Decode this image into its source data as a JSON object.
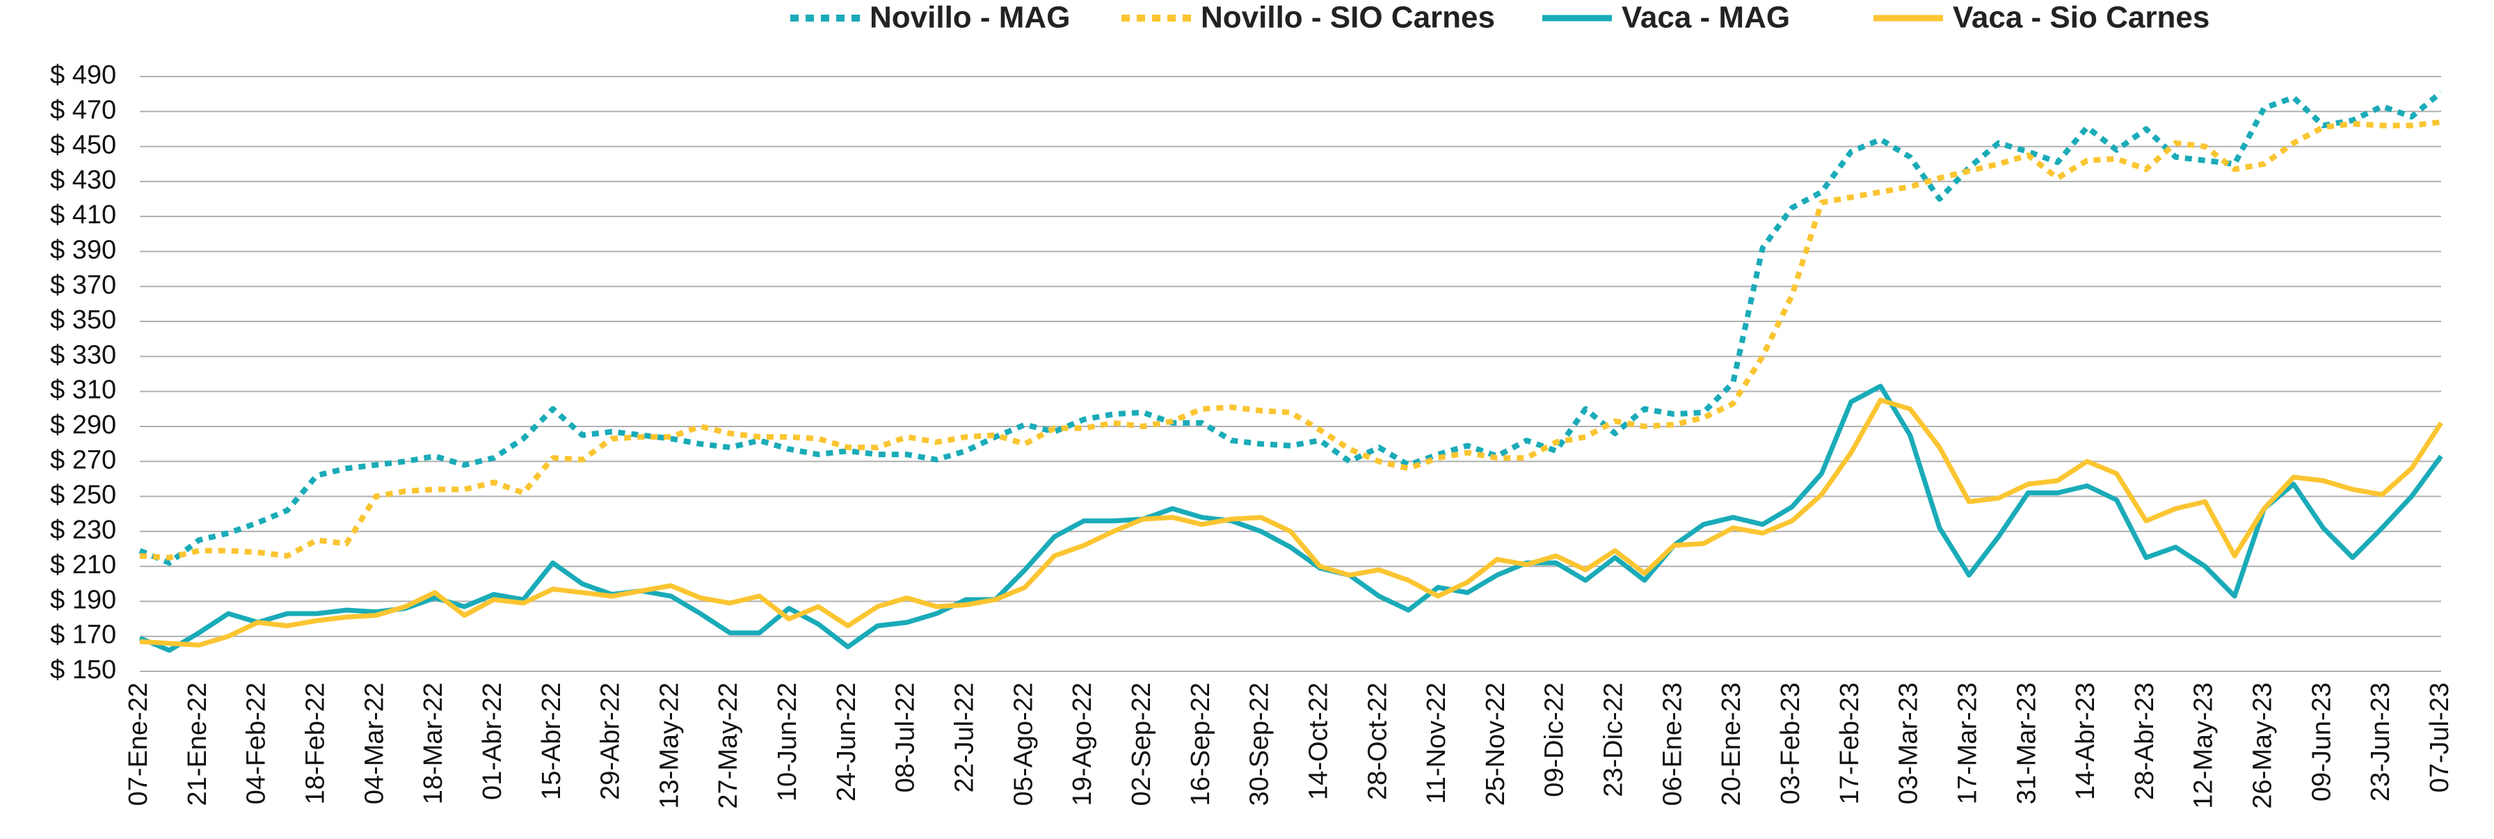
{
  "chart_data": {
    "type": "line",
    "categories": [
      "07-Ene-22",
      null,
      "21-Ene-22",
      null,
      "04-Feb-22",
      null,
      "18-Feb-22",
      null,
      "04-Mar-22",
      null,
      "18-Mar-22",
      null,
      "01-Abr-22",
      null,
      "15-Abr-22",
      null,
      "29-Abr-22",
      null,
      "13-May-22",
      null,
      "27-May-22",
      null,
      "10-Jun-22",
      null,
      "24-Jun-22",
      null,
      "08-Jul-22",
      null,
      "22-Jul-22",
      null,
      "05-Ago-22",
      null,
      "19-Ago-22",
      null,
      "02-Sep-22",
      null,
      "16-Sep-22",
      null,
      "30-Sep-22",
      null,
      "14-Oct-22",
      null,
      "28-Oct-22",
      null,
      "11-Nov-22",
      null,
      "25-Nov-22",
      null,
      "09-Dic-22",
      null,
      "23-Dic-22",
      null,
      "06-Ene-23",
      null,
      "20-Ene-23",
      null,
      "03-Feb-23",
      null,
      "17-Feb-23",
      null,
      "03-Mar-23",
      null,
      "17-Mar-23",
      null,
      "31-Mar-23",
      null,
      "14-Abr-23",
      null,
      "28-Abr-23",
      null,
      "12-May-23",
      null,
      "26-May-23",
      null,
      "09-Jun-23",
      null,
      "23-Jun-23",
      null,
      "07-Jul-23"
    ],
    "series": [
      {
        "name": "Novillo - MAG",
        "color": "#1aabb8",
        "dashed": true,
        "values": [
          219,
          212,
          225,
          229,
          235,
          242,
          262,
          266,
          268,
          270,
          273,
          268,
          272,
          283,
          300,
          285,
          287,
          285,
          283,
          280,
          278,
          282,
          277,
          274,
          276,
          274,
          274,
          271,
          276,
          284,
          291,
          287,
          294,
          297,
          298,
          292,
          292,
          282,
          280,
          279,
          282,
          270,
          278,
          268,
          274,
          279,
          273,
          282,
          276,
          300,
          286,
          300,
          297,
          298,
          315,
          392,
          415,
          424,
          447,
          454,
          444,
          420,
          438,
          452,
          447,
          441,
          461,
          448,
          460,
          444,
          442,
          440,
          472,
          478,
          462,
          465,
          473,
          467,
          481
        ]
      },
      {
        "name": "Novillo - SIO Carnes",
        "color": "#fbc531",
        "dashed": true,
        "values": [
          216,
          215,
          219,
          219,
          218,
          216,
          225,
          223,
          250,
          253,
          254,
          254,
          258,
          252,
          272,
          271,
          283,
          284,
          284,
          290,
          286,
          284,
          284,
          283,
          278,
          278,
          284,
          281,
          284,
          285,
          280,
          289,
          289,
          292,
          290,
          293,
          300,
          301,
          299,
          298,
          288,
          277,
          270,
          266,
          272,
          275,
          272,
          272,
          281,
          284,
          293,
          290,
          291,
          295,
          303,
          330,
          365,
          418,
          421,
          424,
          427,
          432,
          436,
          440,
          445,
          432,
          442,
          443,
          437,
          452,
          450,
          437,
          440,
          452,
          461,
          463,
          462,
          462,
          464
        ]
      },
      {
        "name": "Vaca - MAG",
        "color": "#1aabb8",
        "dashed": false,
        "values": [
          169,
          162,
          172,
          183,
          178,
          183,
          183,
          185,
          184,
          186,
          192,
          187,
          194,
          191,
          212,
          200,
          194,
          196,
          193,
          183,
          172,
          172,
          186,
          177,
          164,
          176,
          178,
          183,
          191,
          191,
          208,
          227,
          236,
          236,
          237,
          243,
          238,
          236,
          230,
          221,
          209,
          205,
          193,
          185,
          198,
          195,
          205,
          212,
          212,
          202,
          215,
          202,
          222,
          234,
          238,
          234,
          244,
          263,
          304,
          313,
          285,
          232,
          205,
          227,
          252,
          252,
          256,
          248,
          215,
          221,
          210,
          193,
          243,
          257,
          232,
          215,
          232,
          250,
          273
        ]
      },
      {
        "name": "Vaca - Sio Carnes",
        "color": "#fbc531",
        "dashed": false,
        "values": [
          167,
          166,
          165,
          170,
          178,
          176,
          179,
          181,
          182,
          187,
          195,
          182,
          191,
          189,
          197,
          195,
          193,
          196,
          199,
          192,
          189,
          193,
          180,
          187,
          176,
          187,
          192,
          187,
          188,
          191,
          198,
          216,
          222,
          230,
          237,
          238,
          234,
          237,
          238,
          230,
          210,
          205,
          208,
          202,
          193,
          201,
          214,
          211,
          216,
          208,
          219,
          206,
          222,
          223,
          232,
          229,
          236,
          251,
          275,
          305,
          300,
          278,
          247,
          249,
          257,
          259,
          270,
          263,
          236,
          243,
          247,
          216,
          243,
          261,
          259,
          254,
          251,
          266,
          292
        ]
      }
    ],
    "ylim": [
      150,
      490
    ],
    "yticks": [
      {
        "value": 150,
        "label": "$ 150"
      },
      {
        "value": 170,
        "label": "$ 170"
      },
      {
        "value": 190,
        "label": "$ 190"
      },
      {
        "value": 210,
        "label": "$ 210"
      },
      {
        "value": 230,
        "label": "$ 230"
      },
      {
        "value": 250,
        "label": "$ 250"
      },
      {
        "value": 270,
        "label": "$ 270"
      },
      {
        "value": 290,
        "label": "$ 290"
      },
      {
        "value": 310,
        "label": "$ 310"
      },
      {
        "value": 330,
        "label": "$ 330"
      },
      {
        "value": 350,
        "label": "$ 350"
      },
      {
        "value": 370,
        "label": "$ 370"
      },
      {
        "value": 390,
        "label": "$ 390"
      },
      {
        "value": 410,
        "label": "$ 410"
      },
      {
        "value": 430,
        "label": "$ 430"
      },
      {
        "value": 450,
        "label": "$ 450"
      },
      {
        "value": 470,
        "label": "$ 470"
      },
      {
        "value": 490,
        "label": "$ 490"
      }
    ],
    "grid": true,
    "legend": "top"
  }
}
